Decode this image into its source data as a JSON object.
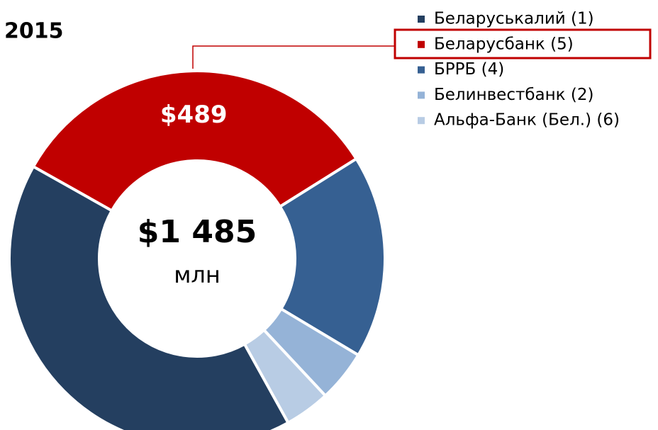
{
  "chart_data": {
    "type": "pie",
    "title": "2015",
    "categories": [
      "Беларуськалий (1)",
      "Беларусбанк (5)",
      "БРРБ (4)",
      "Белинвестбанк (2)",
      "Альфа-Банк (Бел.) (6)"
    ],
    "values": [
      612,
      489,
      260,
      66,
      58
    ],
    "value_labels": [
      null,
      "$489",
      null,
      null,
      null
    ],
    "colors": [
      "#243f60",
      "#c00000",
      "#366092",
      "#95b3d7",
      "#b8cce4"
    ],
    "total_label": "$1 485",
    "unit": "млн"
  }
}
